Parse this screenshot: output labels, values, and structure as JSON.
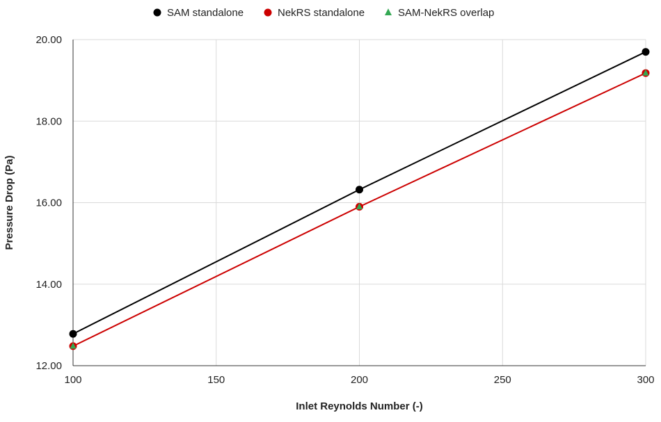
{
  "chart_data": {
    "type": "line",
    "title": "",
    "xlabel": "Inlet Reynolds Number (-)",
    "ylabel": "Pressure Drop (Pa)",
    "xlim": [
      100,
      300
    ],
    "ylim": [
      12,
      20
    ],
    "x_ticks": [
      100,
      150,
      200,
      250,
      300
    ],
    "y_ticks": [
      12,
      14,
      16,
      18,
      20
    ],
    "y_tick_labels": [
      "12.00",
      "14.00",
      "16.00",
      "18.00",
      "20.00"
    ],
    "x_tick_labels": [
      "100",
      "150",
      "200",
      "250",
      "300"
    ],
    "grid": true,
    "legend_position": "top-center",
    "series": [
      {
        "name": "SAM standalone",
        "color": "#000000",
        "marker": "circle",
        "line": true,
        "x": [
          100,
          200,
          300
        ],
        "y": [
          12.78,
          16.32,
          19.7
        ]
      },
      {
        "name": "NekRS standalone",
        "color": "#cc0000",
        "marker": "circle",
        "line": true,
        "x": [
          100,
          200,
          300
        ],
        "y": [
          12.48,
          15.9,
          19.18
        ]
      },
      {
        "name": "SAM-NekRS overlap",
        "color": "#34a853",
        "marker": "triangle",
        "line": false,
        "x": [
          100,
          200,
          300
        ],
        "y": [
          12.48,
          15.9,
          19.18
        ]
      }
    ]
  }
}
